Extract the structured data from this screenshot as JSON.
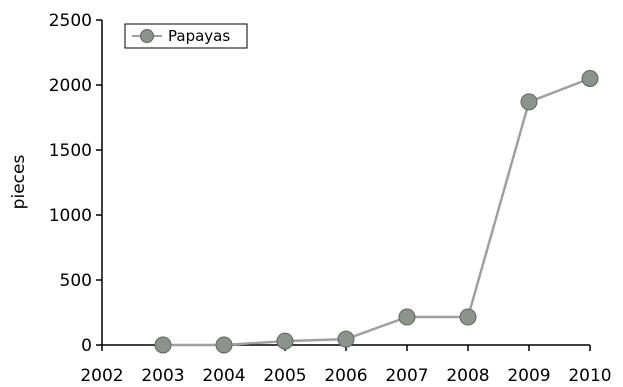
{
  "chart_data": {
    "type": "line",
    "title": "",
    "xlabel": "",
    "ylabel": "pieces",
    "x": [
      2003,
      2004,
      2005,
      2006,
      2007,
      2008,
      2009,
      2010
    ],
    "x_ticks": [
      "2002",
      "2003",
      "2004",
      "2005",
      "2006",
      "2007",
      "2008",
      "2009",
      "2010"
    ],
    "xlim": [
      2002,
      2010
    ],
    "y_ticks": [
      "0",
      "500",
      "1000",
      "1500",
      "2000",
      "2500"
    ],
    "ylim": [
      0,
      2500
    ],
    "grid": false,
    "legend_position": "top-left",
    "series": [
      {
        "name": "Papayas",
        "values": [
          0,
          0,
          30,
          45,
          215,
          215,
          1870,
          2050
        ],
        "line_color": "#a0a0a0",
        "marker_color": "#8c928c"
      }
    ]
  }
}
